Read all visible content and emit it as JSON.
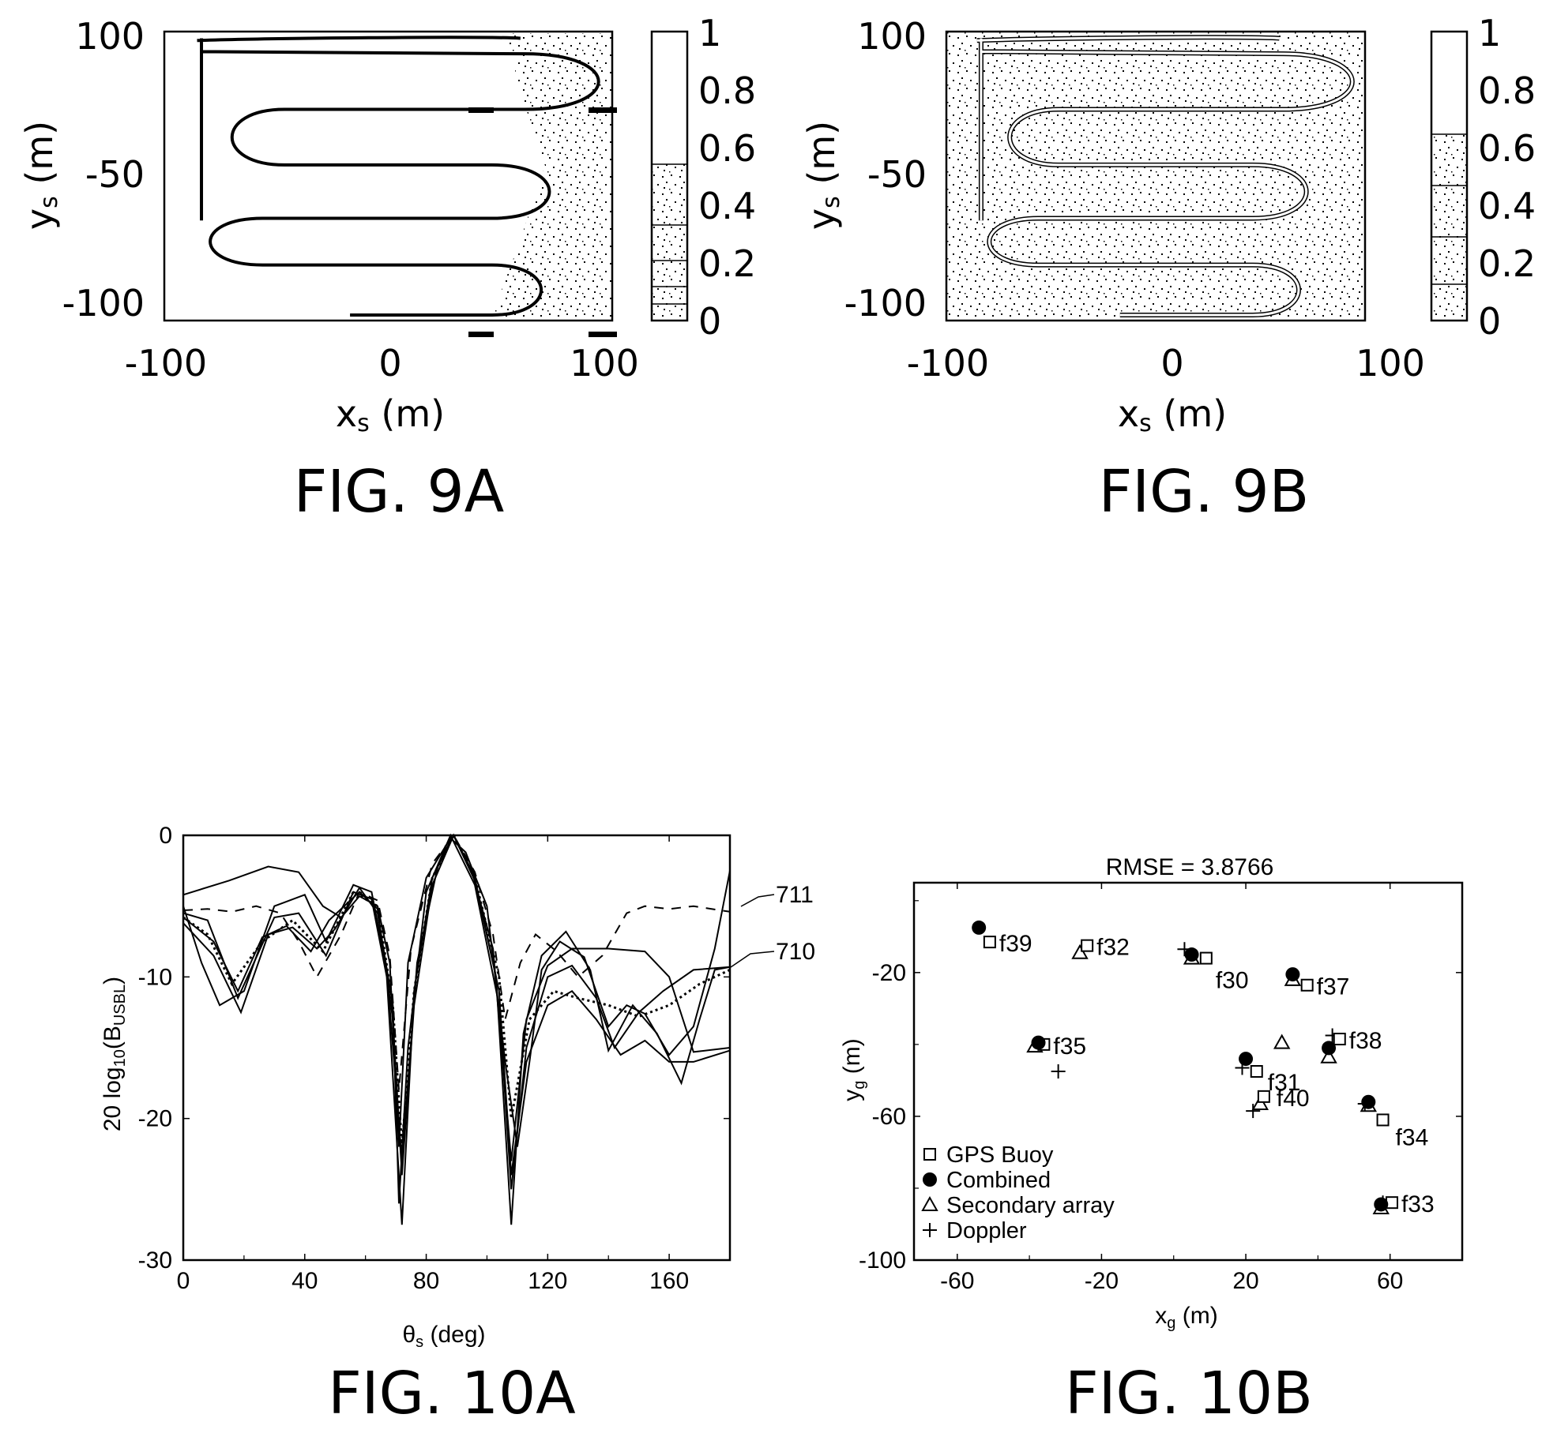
{
  "chart_data": [
    {
      "type": "heatmap",
      "caption": "FIG. 9A",
      "xlabel": "x",
      "xlabel_sub": "s",
      "xlabel_unit": " (m)",
      "ylabel": "y",
      "ylabel_sub": "s",
      "ylabel_unit": " (m)",
      "xticks": [
        "-100",
        "0",
        "100"
      ],
      "yticks": [
        "100",
        "-50",
        "-100"
      ],
      "colorbar_ticks": [
        "1",
        "0.8",
        "0.6",
        "0.4",
        "0.2",
        "0"
      ],
      "colorbar_range": [
        0,
        1
      ],
      "track": "lawnmower survey path with five legs",
      "xlim": [
        -105,
        100
      ],
      "ylim": [
        -110,
        110
      ]
    },
    {
      "type": "heatmap",
      "caption": "FIG. 9B",
      "xlabel": "x",
      "xlabel_sub": "s",
      "xlabel_unit": " (m)",
      "ylabel": "y",
      "ylabel_sub": "s",
      "ylabel_unit": " (m)",
      "xticks": [
        "-100",
        "0",
        "100"
      ],
      "yticks": [
        "100",
        "-50",
        "-100"
      ],
      "colorbar_ticks": [
        "1",
        "0.8",
        "0.6",
        "0.4",
        "0.2",
        "0"
      ],
      "colorbar_range": [
        0,
        1
      ],
      "xlim": [
        -105,
        100
      ],
      "ylim": [
        -110,
        110
      ]
    },
    {
      "type": "line",
      "caption": "FIG. 10A",
      "xlabel": "θ",
      "xlabel_sub": "s",
      "xlabel_unit": " (deg)",
      "ylabel": "20 log",
      "ylabel_sub": "10",
      "ylabel_rest": "(B",
      "ylabel_sub2": "USBL",
      "ylabel_end": ")",
      "xlim": [
        0,
        180
      ],
      "ylim": [
        -30,
        0
      ],
      "xticks": [
        "0",
        "40",
        "80",
        "120",
        "160"
      ],
      "yticks": [
        "0",
        "-10",
        "-20",
        "-30"
      ],
      "annotations": [
        "711",
        "710"
      ],
      "series": [
        {
          "dash": "solid",
          "points": [
            [
              0,
              -4.2
            ],
            [
              15,
              -3.2
            ],
            [
              28,
              -2.2
            ],
            [
              38,
              -2.6
            ],
            [
              46,
              -5
            ],
            [
              52,
              -5.8
            ],
            [
              58,
              -4.3
            ],
            [
              64,
              -5
            ],
            [
              68,
              -9
            ],
            [
              71,
              -22
            ],
            [
              74,
              -9
            ],
            [
              80,
              -3
            ],
            [
              88,
              -0.2
            ],
            [
              93,
              -1.2
            ],
            [
              100,
              -5
            ],
            [
              106,
              -16
            ],
            [
              110,
              -22
            ],
            [
              114,
              -16
            ],
            [
              118,
              -9.5
            ],
            [
              124,
              -7.5
            ],
            [
              132,
              -8.6
            ],
            [
              140,
              -13.5
            ],
            [
              146,
              -12
            ],
            [
              152,
              -12.6
            ],
            [
              160,
              -15.5
            ],
            [
              168,
              -13.5
            ],
            [
              175,
              -8
            ],
            [
              180,
              -2.5
            ]
          ]
        },
        {
          "dash": "solid",
          "points": [
            [
              0,
              -5.5
            ],
            [
              8,
              -6
            ],
            [
              18,
              -11.5
            ],
            [
              30,
              -5.8
            ],
            [
              38,
              -5.5
            ],
            [
              47,
              -8.5
            ],
            [
              56,
              -4
            ],
            [
              62,
              -4.5
            ],
            [
              67,
              -10
            ],
            [
              72,
              -27.5
            ],
            [
              76,
              -11
            ],
            [
              82,
              -3
            ],
            [
              89,
              0
            ],
            [
              96,
              -3
            ],
            [
              103,
              -10
            ],
            [
              108,
              -27.5
            ],
            [
              112,
              -14
            ],
            [
              118,
              -8.5
            ],
            [
              126,
              -6.8
            ],
            [
              134,
              -9.5
            ],
            [
              140,
              -15.2
            ],
            [
              148,
              -12
            ],
            [
              156,
              -14
            ],
            [
              164,
              -17.5
            ],
            [
              170,
              -13
            ],
            [
              175,
              -9.5
            ],
            [
              180,
              -9.3
            ]
          ]
        },
        {
          "dash": "solid",
          "points": [
            [
              0,
              -6.2
            ],
            [
              10,
              -8.5
            ],
            [
              19,
              -12.5
            ],
            [
              28,
              -7
            ],
            [
              36,
              -6.5
            ],
            [
              44,
              -8
            ],
            [
              50,
              -6.6
            ],
            [
              58,
              -3.7
            ],
            [
              64,
              -5.5
            ],
            [
              69,
              -12
            ],
            [
              71,
              -26
            ],
            [
              74,
              -15
            ],
            [
              80,
              -4
            ],
            [
              88,
              0
            ],
            [
              96,
              -3.5
            ],
            [
              104,
              -12
            ],
            [
              108,
              -25
            ],
            [
              113,
              -15
            ],
            [
              120,
              -10
            ],
            [
              128,
              -9.2
            ],
            [
              136,
              -11.5
            ],
            [
              142,
              -15
            ],
            [
              150,
              -12.5
            ],
            [
              158,
              -11
            ],
            [
              168,
              -9.5
            ],
            [
              180,
              -9.3
            ]
          ]
        },
        {
          "dash": "solid",
          "points": [
            [
              0,
              -5
            ],
            [
              6,
              -9
            ],
            [
              12,
              -12
            ],
            [
              20,
              -11
            ],
            [
              30,
              -5
            ],
            [
              40,
              -4.2
            ],
            [
              47,
              -7.5
            ],
            [
              56,
              -3.5
            ],
            [
              62,
              -4
            ],
            [
              67,
              -9.5
            ],
            [
              72,
              -23
            ],
            [
              77,
              -9
            ],
            [
              84,
              -2
            ],
            [
              89,
              0
            ],
            [
              95,
              -2.5
            ],
            [
              102,
              -8
            ],
            [
              108,
              -23
            ],
            [
              113,
              -13
            ],
            [
              120,
              -9.2
            ],
            [
              128,
              -8
            ],
            [
              140,
              -8
            ],
            [
              152,
              -8.2
            ],
            [
              160,
              -10
            ],
            [
              168,
              -15.3
            ],
            [
              180,
              -15
            ]
          ]
        },
        {
          "dash": "solid",
          "points": [
            [
              0,
              -5.8
            ],
            [
              10,
              -7.5
            ],
            [
              18,
              -11
            ],
            [
              26,
              -7.2
            ],
            [
              34,
              -6.4
            ],
            [
              42,
              -8.2
            ],
            [
              48,
              -6
            ],
            [
              58,
              -4
            ],
            [
              64,
              -5.2
            ],
            [
              69,
              -13
            ],
            [
              72,
              -24
            ],
            [
              76,
              -12
            ],
            [
              82,
              -3.5
            ],
            [
              89,
              0
            ],
            [
              96,
              -3.2
            ],
            [
              104,
              -11
            ],
            [
              108,
              -24
            ],
            [
              113,
              -16
            ],
            [
              120,
              -12
            ],
            [
              128,
              -11
            ],
            [
              136,
              -13
            ],
            [
              144,
              -15.5
            ],
            [
              152,
              -14.5
            ],
            [
              160,
              -16
            ],
            [
              168,
              -16
            ],
            [
              180,
              -15.2
            ]
          ]
        },
        {
          "dash": "dashed",
          "points": [
            [
              0,
              -5.3
            ],
            [
              8,
              -5.2
            ],
            [
              16,
              -5.4
            ],
            [
              24,
              -5
            ],
            [
              32,
              -5.5
            ],
            [
              38,
              -7.5
            ],
            [
              44,
              -10
            ],
            [
              52,
              -7
            ],
            [
              58,
              -4
            ],
            [
              64,
              -4.6
            ],
            [
              68,
              -8.5
            ],
            [
              71,
              -18
            ],
            [
              75,
              -8
            ],
            [
              82,
              -2
            ],
            [
              89,
              0
            ],
            [
              96,
              -2.6
            ],
            [
              102,
              -7
            ],
            [
              106,
              -13
            ],
            [
              111,
              -9
            ],
            [
              116,
              -7
            ],
            [
              123,
              -8.2
            ],
            [
              130,
              -10
            ],
            [
              138,
              -8.5
            ],
            [
              146,
              -5.5
            ],
            [
              152,
              -5
            ],
            [
              160,
              -5.2
            ],
            [
              168,
              -5
            ],
            [
              180,
              -5.4
            ]
          ]
        },
        {
          "dash": "dotted",
          "points": [
            [
              0,
              -5.8
            ],
            [
              8,
              -7
            ],
            [
              16,
              -10.5
            ],
            [
              26,
              -7.5
            ],
            [
              36,
              -6
            ],
            [
              46,
              -8.2
            ],
            [
              56,
              -4
            ],
            [
              64,
              -5
            ],
            [
              69,
              -12
            ],
            [
              72,
              -22
            ],
            [
              76,
              -11
            ],
            [
              82,
              -3
            ],
            [
              89,
              0
            ],
            [
              96,
              -3
            ],
            [
              104,
              -10
            ],
            [
              108,
              -20
            ],
            [
              114,
              -13
            ],
            [
              122,
              -11
            ],
            [
              130,
              -11.5
            ],
            [
              140,
              -12
            ],
            [
              150,
              -12.8
            ],
            [
              160,
              -12
            ],
            [
              170,
              -10.5
            ],
            [
              180,
              -9.5
            ]
          ]
        }
      ]
    },
    {
      "type": "scatter",
      "caption": "FIG. 10B",
      "title": "RMSE = 3.8766",
      "xlabel": "x",
      "xlabel_sub": "g",
      "xlabel_unit": " (m)",
      "ylabel": "y",
      "ylabel_sub": "g",
      "ylabel_unit": " (m)",
      "xlim": [
        -72,
        80
      ],
      "ylim": [
        -100,
        5
      ],
      "xticks": [
        -60,
        -20,
        20,
        60
      ],
      "yticks": [
        -20,
        -60,
        -100
      ],
      "legend_placement": "bottom-left",
      "legend": [
        {
          "marker": "square",
          "label": "GPS Buoy"
        },
        {
          "marker": "circle",
          "label": "Combined"
        },
        {
          "marker": "triangle",
          "label": "Secondary array"
        },
        {
          "marker": "plus",
          "label": "Doppler"
        }
      ],
      "points": [
        {
          "label": "f39",
          "gps": [
            -51,
            -11.5
          ],
          "combined": [
            -54,
            -7.5
          ],
          "secondary": null,
          "doppler": null
        },
        {
          "label": "f32",
          "gps": [
            -24,
            -12.5
          ],
          "combined": null,
          "secondary": [
            -26,
            -14.5
          ],
          "doppler": null
        },
        {
          "label": "f30",
          "gps": [
            9,
            -16
          ],
          "combined": [
            5,
            -15
          ],
          "secondary": [
            5,
            -16
          ],
          "doppler": [
            3,
            -13.5
          ]
        },
        {
          "label": "f37",
          "gps": [
            37,
            -23.5
          ],
          "combined": [
            33,
            -20.5
          ],
          "secondary": [
            33,
            -22
          ],
          "doppler": null
        },
        {
          "label": "f35",
          "gps": [
            -36,
            -40
          ],
          "combined": [
            -37.5,
            -39.5
          ],
          "secondary": [
            -38.5,
            -40.5
          ],
          "doppler": [
            -32,
            -47.5
          ]
        },
        {
          "label": "f38",
          "gps": [
            46,
            -38.5
          ],
          "combined": [
            43,
            -41
          ],
          "secondary": [
            43,
            -43.5
          ],
          "doppler": [
            44,
            -37.5
          ]
        },
        {
          "label": "f31",
          "gps": [
            23,
            -47.5
          ],
          "combined": [
            20,
            -44
          ],
          "secondary": [
            30,
            -39.5
          ],
          "doppler": [
            19,
            -46.5
          ]
        },
        {
          "label": "f40",
          "gps": [
            25,
            -54.5
          ],
          "combined": null,
          "secondary": [
            24,
            -56.5
          ],
          "doppler": [
            22,
            -58.5
          ]
        },
        {
          "label": "f34",
          "gps": [
            58,
            -61
          ],
          "combined": [
            54,
            -56
          ],
          "secondary": [
            54,
            -57
          ],
          "doppler": [
            53,
            -56.5
          ]
        },
        {
          "label": "f33",
          "gps": [
            60.5,
            -84
          ],
          "combined": [
            57.5,
            -84.5
          ],
          "secondary": [
            57.5,
            -85.5
          ],
          "doppler": [
            58,
            -84
          ]
        }
      ]
    }
  ]
}
